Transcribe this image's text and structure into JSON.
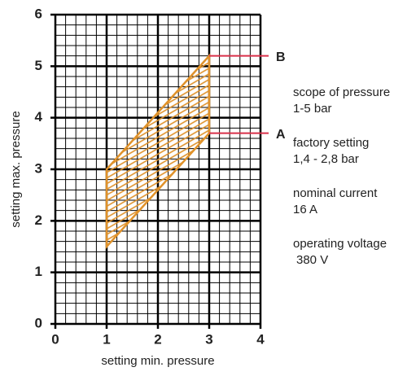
{
  "chart_data": {
    "type": "area",
    "x_label": "setting min. pressure",
    "y_label": "setting max. pressure",
    "x": [
      1,
      1,
      3,
      3
    ],
    "values": [
      1.5,
      3,
      5.2,
      3.7
    ],
    "color": "#e0922a",
    "xlim": [
      0,
      4
    ],
    "xticks": [
      0,
      1,
      2,
      3,
      4
    ],
    "ylim": [
      0,
      6
    ],
    "yticks": [
      0,
      1,
      2,
      3,
      4,
      5,
      6
    ],
    "grid": true,
    "minor_divisions": 5,
    "annotations": [
      {
        "label": "A",
        "x": 3,
        "y": 3.7
      },
      {
        "label": "B",
        "x": 3,
        "y": 5.2
      }
    ],
    "annotation_color": "#d9304a",
    "notes": [
      {
        "title": "scope of pressure",
        "text": "1-5 bar"
      },
      {
        "title": "factory setting",
        "text": "1,4 - 2,8 bar"
      },
      {
        "title": "nominal current",
        "text": "16 A"
      },
      {
        "title": "operating voltage",
        "text": "380 V"
      }
    ]
  }
}
